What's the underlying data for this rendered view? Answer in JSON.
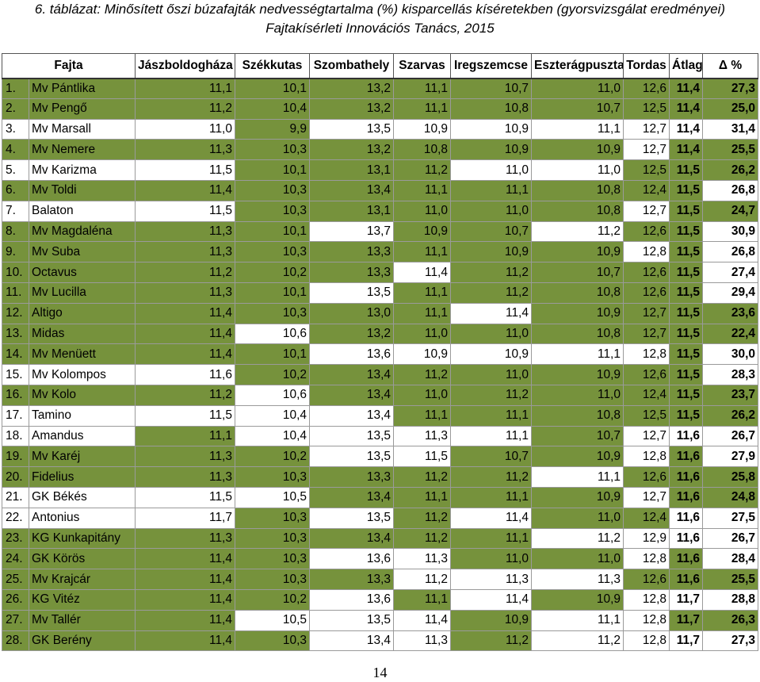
{
  "caption": {
    "label": "6. táblázat:",
    "text": " Minősített őszi búzafajták nedvességtartalma (%) kisparcellás kíséretekben (gyorsvizsgálat eredményei)",
    "subtitle": "Fajtakísérleti Innovációs Tanács, 2015"
  },
  "headers": [
    "Fajta",
    "Jászboldogháza",
    "Székkutas",
    "Szombathely",
    "Szarvas",
    "Iregszemcse",
    "Eszterágpuszta",
    "Tordas",
    "Átlag",
    "Δ %"
  ],
  "rows": [
    {
      "rank": "1.",
      "name": "Mv Pántlika",
      "values": [
        "11,1",
        "10,1",
        "13,2",
        "11,1",
        "10,7",
        "11,0",
        "12,6"
      ],
      "avg": "11,4",
      "delta": "27,3",
      "green": [
        true,
        true,
        true,
        true,
        true,
        true,
        true,
        true,
        true,
        true
      ]
    },
    {
      "rank": "2.",
      "name": "Mv Pengő",
      "values": [
        "11,2",
        "10,4",
        "13,2",
        "11,1",
        "10,8",
        "10,7",
        "12,5"
      ],
      "avg": "11,4",
      "delta": "25,0",
      "green": [
        true,
        true,
        true,
        true,
        true,
        true,
        true,
        true,
        true,
        true
      ]
    },
    {
      "rank": "3.",
      "name": "Mv Marsall",
      "values": [
        "11,0",
        "9,9",
        "13,5",
        "10,9",
        "10,9",
        "11,1",
        "12,7"
      ],
      "avg": "11,4",
      "delta": "31,4",
      "green": [
        false,
        false,
        true,
        false,
        false,
        false,
        false,
        false,
        false,
        false
      ]
    },
    {
      "rank": "4.",
      "name": "Mv Nemere",
      "values": [
        "11,3",
        "10,3",
        "13,2",
        "10,8",
        "10,9",
        "10,9",
        "12,7"
      ],
      "avg": "11,4",
      "delta": "25,5",
      "green": [
        true,
        true,
        true,
        true,
        true,
        true,
        true,
        false,
        true,
        true
      ]
    },
    {
      "rank": "5.",
      "name": "Mv Karizma",
      "values": [
        "11,5",
        "10,1",
        "13,1",
        "11,2",
        "11,0",
        "11,0",
        "12,5"
      ],
      "avg": "11,5",
      "delta": "26,2",
      "green": [
        false,
        false,
        true,
        true,
        true,
        false,
        false,
        true,
        true,
        true
      ]
    },
    {
      "rank": "6.",
      "name": "Mv Toldi",
      "values": [
        "11,4",
        "10,3",
        "13,4",
        "11,1",
        "11,1",
        "10,8",
        "12,4"
      ],
      "avg": "11,5",
      "delta": "26,8",
      "green": [
        true,
        true,
        true,
        true,
        true,
        true,
        true,
        true,
        true,
        false
      ]
    },
    {
      "rank": "7.",
      "name": "Balaton",
      "values": [
        "11,5",
        "10,3",
        "13,1",
        "11,0",
        "11,0",
        "10,8",
        "12,7"
      ],
      "avg": "11,5",
      "delta": "24,7",
      "green": [
        false,
        false,
        true,
        true,
        true,
        true,
        true,
        false,
        true,
        true
      ]
    },
    {
      "rank": "8.",
      "name": "Mv Magdaléna",
      "values": [
        "11,3",
        "10,1",
        "13,7",
        "10,9",
        "10,7",
        "11,2",
        "12,6"
      ],
      "avg": "11,5",
      "delta": "30,9",
      "green": [
        true,
        true,
        true,
        false,
        true,
        true,
        false,
        true,
        true,
        false
      ]
    },
    {
      "rank": "9.",
      "name": "Mv Suba",
      "values": [
        "11,3",
        "10,3",
        "13,3",
        "11,1",
        "10,9",
        "10,9",
        "12,8"
      ],
      "avg": "11,5",
      "delta": "26,8",
      "green": [
        true,
        true,
        true,
        true,
        true,
        true,
        true,
        false,
        true,
        false
      ]
    },
    {
      "rank": "10.",
      "name": "Octavus",
      "values": [
        "11,2",
        "10,2",
        "13,3",
        "11,4",
        "11,2",
        "10,7",
        "12,6"
      ],
      "avg": "11,5",
      "delta": "27,4",
      "green": [
        true,
        true,
        true,
        true,
        false,
        true,
        true,
        true,
        true,
        false
      ]
    },
    {
      "rank": "11.",
      "name": "Mv Lucilla",
      "values": [
        "11,3",
        "10,1",
        "13,5",
        "11,1",
        "11,2",
        "10,8",
        "12,6"
      ],
      "avg": "11,5",
      "delta": "29,4",
      "green": [
        true,
        true,
        true,
        false,
        true,
        true,
        true,
        true,
        true,
        false
      ]
    },
    {
      "rank": "12.",
      "name": "Altigo",
      "values": [
        "11,4",
        "10,3",
        "13,0",
        "11,1",
        "11,4",
        "10,9",
        "12,7"
      ],
      "avg": "11,5",
      "delta": "23,6",
      "green": [
        true,
        true,
        true,
        true,
        true,
        false,
        true,
        true,
        true,
        true
      ]
    },
    {
      "rank": "13.",
      "name": "Midas",
      "values": [
        "11,4",
        "10,6",
        "13,2",
        "11,0",
        "11,0",
        "10,8",
        "12,7"
      ],
      "avg": "11,5",
      "delta": "22,4",
      "green": [
        true,
        true,
        false,
        true,
        true,
        true,
        true,
        true,
        true,
        true
      ]
    },
    {
      "rank": "14.",
      "name": "Mv Menüett",
      "values": [
        "11,4",
        "10,1",
        "13,6",
        "10,9",
        "10,9",
        "11,1",
        "12,8"
      ],
      "avg": "11,5",
      "delta": "30,0",
      "green": [
        true,
        true,
        true,
        false,
        false,
        false,
        false,
        false,
        true,
        false
      ]
    },
    {
      "rank": "15.",
      "name": "Mv Kolompos",
      "values": [
        "11,6",
        "10,2",
        "13,4",
        "11,2",
        "11,0",
        "10,9",
        "12,6"
      ],
      "avg": "11,5",
      "delta": "28,3",
      "green": [
        false,
        false,
        true,
        true,
        true,
        true,
        true,
        true,
        true,
        false
      ]
    },
    {
      "rank": "16.",
      "name": "Mv Kolo",
      "values": [
        "11,2",
        "10,6",
        "13,4",
        "11,0",
        "11,2",
        "11,0",
        "12,4"
      ],
      "avg": "11,5",
      "delta": "23,7",
      "green": [
        true,
        true,
        false,
        true,
        true,
        true,
        true,
        true,
        true,
        true
      ]
    },
    {
      "rank": "17.",
      "name": "Tamino",
      "values": [
        "11,5",
        "10,4",
        "13,4",
        "11,1",
        "11,1",
        "10,8",
        "12,5"
      ],
      "avg": "11,5",
      "delta": "26,2",
      "green": [
        false,
        false,
        false,
        false,
        true,
        true,
        true,
        true,
        true,
        true
      ]
    },
    {
      "rank": "18.",
      "name": "Amandus",
      "values": [
        "11,1",
        "10,4",
        "13,5",
        "11,3",
        "11,1",
        "10,7",
        "12,7"
      ],
      "avg": "11,6",
      "delta": "26,7",
      "green": [
        false,
        true,
        false,
        false,
        false,
        false,
        true,
        false,
        false,
        false
      ]
    },
    {
      "rank": "19.",
      "name": "Mv Karéj",
      "values": [
        "11,3",
        "10,2",
        "13,5",
        "11,5",
        "10,7",
        "10,9",
        "12,8"
      ],
      "avg": "11,6",
      "delta": "27,9",
      "green": [
        true,
        true,
        true,
        false,
        false,
        true,
        true,
        false,
        true,
        false
      ]
    },
    {
      "rank": "20.",
      "name": "Fidelius",
      "values": [
        "11,3",
        "10,3",
        "13,3",
        "11,2",
        "11,2",
        "11,1",
        "12,6"
      ],
      "avg": "11,6",
      "delta": "25,8",
      "green": [
        true,
        true,
        true,
        true,
        true,
        true,
        false,
        true,
        true,
        true
      ]
    },
    {
      "rank": "21.",
      "name": "GK Békés",
      "values": [
        "11,5",
        "10,5",
        "13,4",
        "11,1",
        "11,1",
        "10,9",
        "12,7"
      ],
      "avg": "11,6",
      "delta": "24,8",
      "green": [
        false,
        false,
        false,
        true,
        true,
        true,
        true,
        false,
        true,
        true
      ]
    },
    {
      "rank": "22.",
      "name": "Antonius",
      "values": [
        "11,7",
        "10,3",
        "13,5",
        "11,2",
        "11,4",
        "11,0",
        "12,4"
      ],
      "avg": "11,6",
      "delta": "27,5",
      "green": [
        false,
        false,
        true,
        false,
        true,
        false,
        true,
        true,
        false,
        false
      ]
    },
    {
      "rank": "23.",
      "name": "KG Kunkapitány",
      "values": [
        "11,3",
        "10,3",
        "13,4",
        "11,2",
        "11,1",
        "11,2",
        "12,9"
      ],
      "avg": "11,6",
      "delta": "26,7",
      "green": [
        true,
        true,
        true,
        true,
        true,
        true,
        false,
        false,
        false,
        false
      ]
    },
    {
      "rank": "24.",
      "name": "GK Körös",
      "values": [
        "11,4",
        "10,3",
        "13,6",
        "11,3",
        "11,0",
        "11,0",
        "12,8"
      ],
      "avg": "11,6",
      "delta": "28,4",
      "green": [
        true,
        true,
        true,
        false,
        false,
        true,
        true,
        false,
        true,
        false
      ]
    },
    {
      "rank": "25.",
      "name": "Mv Krajcár",
      "values": [
        "11,4",
        "10,3",
        "13,3",
        "11,2",
        "11,3",
        "11,3",
        "12,6"
      ],
      "avg": "11,6",
      "delta": "25,5",
      "green": [
        true,
        true,
        true,
        true,
        false,
        false,
        false,
        true,
        true,
        true
      ]
    },
    {
      "rank": "26.",
      "name": "KG Vitéz",
      "values": [
        "11,4",
        "10,2",
        "13,6",
        "11,1",
        "11,4",
        "10,9",
        "12,8"
      ],
      "avg": "11,7",
      "delta": "28,8",
      "green": [
        true,
        true,
        true,
        false,
        true,
        false,
        true,
        false,
        false,
        false
      ]
    },
    {
      "rank": "27.",
      "name": "Mv Tallér",
      "values": [
        "11,4",
        "10,5",
        "13,5",
        "11,4",
        "10,9",
        "11,1",
        "12,8"
      ],
      "avg": "11,7",
      "delta": "26,3",
      "green": [
        true,
        true,
        false,
        false,
        false,
        true,
        false,
        false,
        true,
        true
      ]
    },
    {
      "rank": "28.",
      "name": "GK Berény",
      "values": [
        "11,4",
        "10,3",
        "13,4",
        "11,3",
        "11,2",
        "11,2",
        "12,8"
      ],
      "avg": "11,7",
      "delta": "27,3",
      "green": [
        true,
        true,
        true,
        false,
        false,
        true,
        false,
        false,
        false,
        false
      ]
    }
  ],
  "colors": {
    "highlight": "#76923c"
  },
  "page_number": "14"
}
